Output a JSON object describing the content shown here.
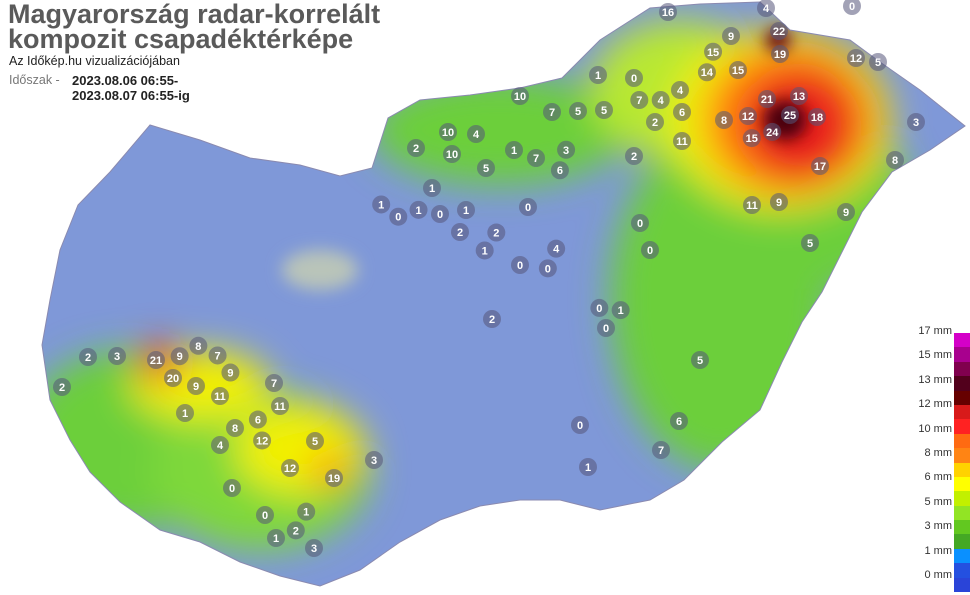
{
  "header": {
    "title_line1": "Magyarország radar-korrelált",
    "title_line2": "kompozit csapadéktérképe",
    "subtitle": "Az Időkép.hu vizualizációjában",
    "period_label": "Időszak -",
    "period_from": "2023.08.06 06:55-",
    "period_to": "2023.08.07 06:55-ig"
  },
  "legend": {
    "labels": [
      "17 mm",
      "15 mm",
      "13 mm",
      "12 mm",
      "10 mm",
      "8 mm",
      "6 mm",
      "5 mm",
      "3 mm",
      "1 mm",
      "0 mm"
    ],
    "colors": [
      "#d400c8",
      "#a8008e",
      "#80004e",
      "#52001c",
      "#660000",
      "#d81a1a",
      "#ff2222",
      "#ff6a12",
      "#ff8414",
      "#ffd200",
      "#ffff00",
      "#c2f000",
      "#92e424",
      "#62c820",
      "#44a824",
      "#0a90ff",
      "#2450e0",
      "#2a44d8"
    ]
  },
  "map": {
    "colors": {
      "base": "#7f98d8",
      "green": "#6ccf3a",
      "yellow": "#f2f000",
      "orange": "#ff7a10",
      "red": "#e81c1c",
      "dark": "#4a0010",
      "lake": "#b9c4b9",
      "marker": "#55557a"
    },
    "stations": [
      "16",
      "4",
      "0",
      "22",
      "19",
      "15",
      "14",
      "15",
      "12",
      "5",
      "9",
      "21",
      "25",
      "18",
      "24",
      "12",
      "15",
      "17",
      "13",
      "8",
      "3",
      "11",
      "9",
      "9",
      "8",
      "5",
      "7",
      "5",
      "4",
      "0",
      "3",
      "7",
      "4",
      "6",
      "2",
      "11",
      "2",
      "1",
      "10",
      "5",
      "10",
      "1",
      "7",
      "6",
      "10",
      "4",
      "2",
      "1",
      "1",
      "1",
      "0",
      "1",
      "0",
      "2",
      "2",
      "0",
      "1",
      "0",
      "0",
      "5",
      "21",
      "20",
      "9",
      "8",
      "7",
      "9",
      "11",
      "7",
      "11",
      "6",
      "12",
      "9",
      "8",
      "12",
      "19",
      "5",
      "3",
      "4",
      "1",
      "3",
      "2",
      "2",
      "0",
      "0",
      "1",
      "2",
      "1",
      "3",
      "7",
      "5",
      "6",
      "0",
      "0",
      "0",
      "1",
      "0",
      "1",
      "0",
      "2",
      "4"
    ]
  }
}
